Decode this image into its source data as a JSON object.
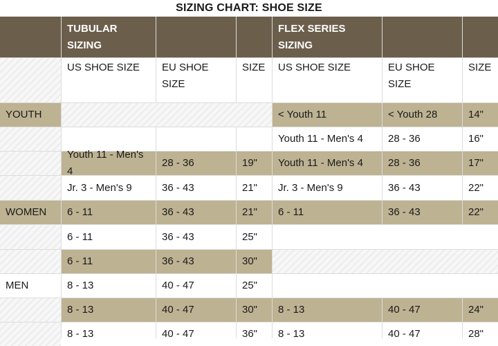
{
  "title": "SIZING CHART: SHOE SIZE",
  "groups": {
    "tubular_line1": "TUBULAR",
    "tubular_line2": "SIZING",
    "flex_line1": "FLEX SERIES",
    "flex_line2": "SIZING"
  },
  "columns": {
    "us_shoe_size": "US SHOE SIZE",
    "eu_shoe_line1": "EU SHOE",
    "eu_shoe_line2": "SIZE",
    "size": "SIZE"
  },
  "rows": [
    {
      "label": "YOUTH",
      "t_us": "",
      "t_eu": "",
      "t_size": "",
      "f_us": "< Youth 11",
      "f_eu": "< Youth 28",
      "f_size": "14\""
    },
    {
      "label": "",
      "t_us": "",
      "t_eu": "",
      "t_size": "",
      "f_us": "Youth 11 - Men's 4",
      "f_eu": "28 - 36",
      "f_size": "16\""
    },
    {
      "label": "",
      "t_us": "Youth 11 - Men's 4",
      "t_eu": "28 - 36",
      "t_size": "19\"",
      "f_us": "Youth 11 - Men's 4",
      "f_eu": "28 - 36",
      "f_size": "17\""
    },
    {
      "label": "",
      "t_us": "Jr. 3 - Men's 9",
      "t_eu": "36 - 43",
      "t_size": "21\"",
      "f_us": "Jr. 3 - Men's 9",
      "f_eu": "36 - 43",
      "f_size": "22\""
    },
    {
      "label": "WOMEN",
      "t_us": "6 - 11",
      "t_eu": "36 - 43",
      "t_size": "21\"",
      "f_us": "6 - 11",
      "f_eu": "36 - 43",
      "f_size": "22\""
    },
    {
      "label": "",
      "t_us": "6 - 11",
      "t_eu": "36 - 43",
      "t_size": "25\"",
      "f_us": "",
      "f_eu": "",
      "f_size": ""
    },
    {
      "label": "",
      "t_us": "6 - 11",
      "t_eu": "36 - 43",
      "t_size": "30\"",
      "f_us": "",
      "f_eu": "",
      "f_size": ""
    },
    {
      "label": "MEN",
      "t_us": "8 - 13",
      "t_eu": "40 - 47",
      "t_size": "25\"",
      "f_us": "",
      "f_eu": "",
      "f_size": ""
    },
    {
      "label": "",
      "t_us": "8 - 13",
      "t_eu": "40 - 47",
      "t_size": "30\"",
      "f_us": "8 - 13",
      "f_eu": "40 - 47",
      "f_size": "24\""
    },
    {
      "label": "",
      "t_us": "8 - 13",
      "t_eu": "40 - 47",
      "t_size": "36\"",
      "f_us": "8 - 13",
      "f_eu": "40 - 47",
      "f_size": "28\""
    }
  ],
  "colors": {
    "header_brown": "#6b5e4b",
    "row_tan": "#bdb292",
    "hatch_light": "#ececec"
  }
}
